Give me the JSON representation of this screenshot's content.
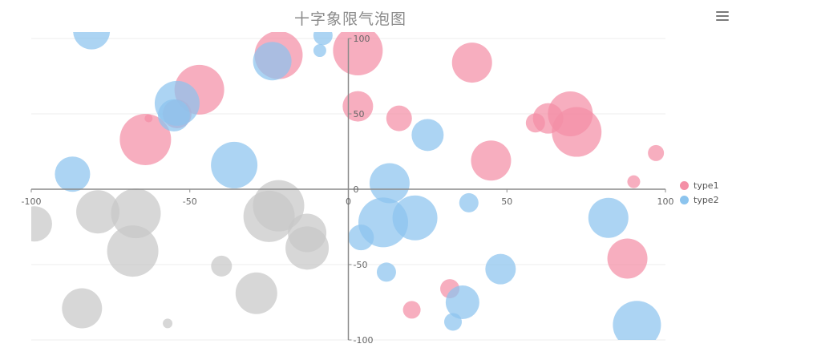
{
  "chart_data": {
    "type": "scatter",
    "subtype": "bubble",
    "title": "十字象限气泡图",
    "xlim": [
      -100,
      100
    ],
    "ylim": [
      -100,
      100
    ],
    "x_ticks": [
      -100,
      -50,
      0,
      50,
      100
    ],
    "y_ticks": [
      -100,
      -50,
      0,
      50,
      100
    ],
    "axis_crossing": "origin",
    "grid": true,
    "legend_position": "right-middle",
    "series": [
      {
        "name": "type1",
        "color": "#f48fa6",
        "points": [
          {
            "x": -22,
            "y": 89,
            "r": 30
          },
          {
            "x": 3,
            "y": 92,
            "r": 31
          },
          {
            "x": 39,
            "y": 84,
            "r": 25
          },
          {
            "x": -47,
            "y": 66,
            "r": 31
          },
          {
            "x": 3,
            "y": 55,
            "r": 19
          },
          {
            "x": -63,
            "y": 47,
            "r": 5
          },
          {
            "x": 16,
            "y": 47,
            "r": 16
          },
          {
            "x": -54,
            "y": 50,
            "r": 18
          },
          {
            "x": -64,
            "y": 33,
            "r": 32
          },
          {
            "x": 59,
            "y": 44,
            "r": 12
          },
          {
            "x": 63,
            "y": 47,
            "r": 19
          },
          {
            "x": 70,
            "y": 50,
            "r": 28
          },
          {
            "x": 72,
            "y": 38,
            "r": 31
          },
          {
            "x": 45,
            "y": 19,
            "r": 25
          },
          {
            "x": 97,
            "y": 24,
            "r": 10
          },
          {
            "x": 90,
            "y": 5,
            "r": 8
          },
          {
            "x": 88,
            "y": -46,
            "r": 25
          },
          {
            "x": 32,
            "y": -66,
            "r": 12
          },
          {
            "x": 20,
            "y": -80,
            "r": 11
          }
        ]
      },
      {
        "name": "type2",
        "color": "#8cc4ee",
        "points": [
          {
            "x": -81,
            "y": 105,
            "r": 23
          },
          {
            "x": -8,
            "y": 102,
            "r": 12
          },
          {
            "x": -9,
            "y": 92,
            "r": 8
          },
          {
            "x": -24,
            "y": 85,
            "r": 24
          },
          {
            "x": -54,
            "y": 57,
            "r": 28
          },
          {
            "x": -55,
            "y": 49,
            "r": 20
          },
          {
            "x": 25,
            "y": 36,
            "r": 20
          },
          {
            "x": -36,
            "y": 16,
            "r": 29
          },
          {
            "x": -87,
            "y": 10,
            "r": 22
          },
          {
            "x": 13,
            "y": 4,
            "r": 25
          },
          {
            "x": 38,
            "y": -9,
            "r": 12
          },
          {
            "x": 82,
            "y": -19,
            "r": 25
          },
          {
            "x": 21,
            "y": -19,
            "r": 28
          },
          {
            "x": 11,
            "y": -22,
            "r": 31
          },
          {
            "x": 4,
            "y": -32,
            "r": 16
          },
          {
            "x": 12,
            "y": -55,
            "r": 12
          },
          {
            "x": 48,
            "y": -53,
            "r": 19
          },
          {
            "x": 36,
            "y": -75,
            "r": 21
          },
          {
            "x": 33,
            "y": -88,
            "r": 11
          },
          {
            "x": 91,
            "y": -90,
            "r": 30
          }
        ]
      },
      {
        "name": "",
        "color": "#c8c8c8",
        "points": [
          {
            "x": -99,
            "y": -23,
            "r": 22
          },
          {
            "x": -79,
            "y": -15,
            "r": 27
          },
          {
            "x": -67,
            "y": -16,
            "r": 31
          },
          {
            "x": -68,
            "y": -41,
            "r": 32
          },
          {
            "x": -25,
            "y": -18,
            "r": 32
          },
          {
            "x": -22,
            "y": -11,
            "r": 32
          },
          {
            "x": -13,
            "y": -29,
            "r": 24
          },
          {
            "x": -13,
            "y": -39,
            "r": 27
          },
          {
            "x": -40,
            "y": -51,
            "r": 13
          },
          {
            "x": -29,
            "y": -69,
            "r": 26
          },
          {
            "x": -84,
            "y": -79,
            "r": 25
          },
          {
            "x": -57,
            "y": -89,
            "r": 6
          }
        ]
      }
    ]
  }
}
